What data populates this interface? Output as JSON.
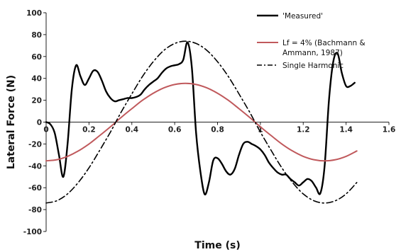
{
  "chart_data": {
    "type": "line",
    "title": "",
    "xlabel": "Time (s)",
    "ylabel": "Lateral Force (N)",
    "xlim": [
      0,
      1.6
    ],
    "ylim": [
      -100,
      100
    ],
    "x_ticks": [
      "0",
      "0.2",
      "0.4",
      "0.6",
      "0.8",
      "1",
      "1.2",
      "1.4",
      "1.6"
    ],
    "y_ticks": [
      "100",
      "80",
      "60",
      "40",
      "20",
      "0",
      "-20",
      "-40",
      "-60",
      "-80",
      "-100"
    ],
    "grid": false,
    "legend_position": "top-right",
    "series": [
      {
        "name": "'Measured'",
        "color": "#000000",
        "style": "solid",
        "x": [
          0,
          0.02,
          0.04,
          0.06,
          0.08,
          0.1,
          0.12,
          0.14,
          0.16,
          0.18,
          0.2,
          0.22,
          0.24,
          0.26,
          0.28,
          0.3,
          0.32,
          0.34,
          0.36,
          0.38,
          0.4,
          0.42,
          0.44,
          0.46,
          0.48,
          0.5,
          0.52,
          0.54,
          0.56,
          0.58,
          0.6,
          0.62,
          0.64,
          0.66,
          0.68,
          0.7,
          0.72,
          0.74,
          0.76,
          0.78,
          0.8,
          0.82,
          0.84,
          0.86,
          0.88,
          0.9,
          0.92,
          0.94,
          0.96,
          0.98,
          1.0,
          1.02,
          1.04,
          1.06,
          1.08,
          1.1,
          1.12,
          1.14,
          1.16,
          1.18,
          1.2,
          1.22,
          1.24,
          1.26,
          1.28,
          1.3,
          1.32,
          1.34,
          1.36,
          1.38,
          1.4,
          1.42,
          1.44
        ],
        "y": [
          0,
          -2,
          -10,
          -30,
          -50,
          -20,
          30,
          52,
          42,
          34,
          40,
          47,
          46,
          38,
          28,
          22,
          19,
          20,
          21,
          22,
          22,
          23,
          25,
          30,
          34,
          37,
          40,
          45,
          49,
          51,
          52,
          53,
          57,
          73,
          50,
          -10,
          -45,
          -66,
          -55,
          -35,
          -33,
          -38,
          -45,
          -48,
          -43,
          -30,
          -20,
          -18,
          -20,
          -22,
          -25,
          -30,
          -37,
          -42,
          -46,
          -48,
          -48,
          -52,
          -55,
          -58,
          -55,
          -52,
          -54,
          -60,
          -65,
          -40,
          20,
          55,
          63,
          45,
          33,
          33,
          36
        ]
      },
      {
        "name": "Lf = 4% (Bachmann & Ammann, 1987)",
        "color": "#c0595c",
        "style": "solid",
        "amplitude": 35.4,
        "period": 1.3,
        "x": [
          0,
          0.05,
          0.1,
          0.15,
          0.2,
          0.25,
          0.3,
          0.35,
          0.4,
          0.45,
          0.5,
          0.55,
          0.6,
          0.65,
          0.7,
          0.75,
          0.8,
          0.85,
          0.9,
          0.95,
          1.0,
          1.05,
          1.1,
          1.15,
          1.2,
          1.25,
          1.3,
          1.35,
          1.4,
          1.45
        ],
        "y": [
          -35.4,
          -34.4,
          -31.3,
          -26.4,
          -20.0,
          -12.3,
          -4.3,
          4.3,
          12.3,
          20.0,
          26.4,
          31.3,
          34.4,
          35.4,
          34.4,
          31.3,
          26.4,
          20.0,
          12.3,
          4.3,
          -4.3,
          -12.3,
          -20.0,
          -26.4,
          -31.3,
          -34.4,
          -35.4,
          -34.4,
          -31.3,
          -26.4
        ]
      },
      {
        "name": "Single Harmonic",
        "color": "#000000",
        "style": "dash-dot",
        "amplitude": 74,
        "period": 1.3,
        "x": [
          0,
          0.05,
          0.1,
          0.15,
          0.2,
          0.25,
          0.3,
          0.35,
          0.4,
          0.45,
          0.5,
          0.55,
          0.6,
          0.65,
          0.7,
          0.75,
          0.8,
          0.85,
          0.9,
          0.95,
          1.0,
          1.05,
          1.1,
          1.15,
          1.2,
          1.25,
          1.3,
          1.35,
          1.4,
          1.45
        ],
        "y": [
          -74.0,
          -71.9,
          -65.6,
          -55.2,
          -41.8,
          -25.8,
          -9.1,
          9.1,
          25.8,
          41.8,
          55.2,
          65.6,
          71.9,
          74.0,
          71.9,
          65.6,
          55.2,
          41.8,
          25.8,
          9.1,
          -9.1,
          -25.8,
          -41.8,
          -55.2,
          -65.6,
          -71.9,
          -74.0,
          -71.9,
          -65.6,
          -55.2
        ]
      }
    ]
  }
}
